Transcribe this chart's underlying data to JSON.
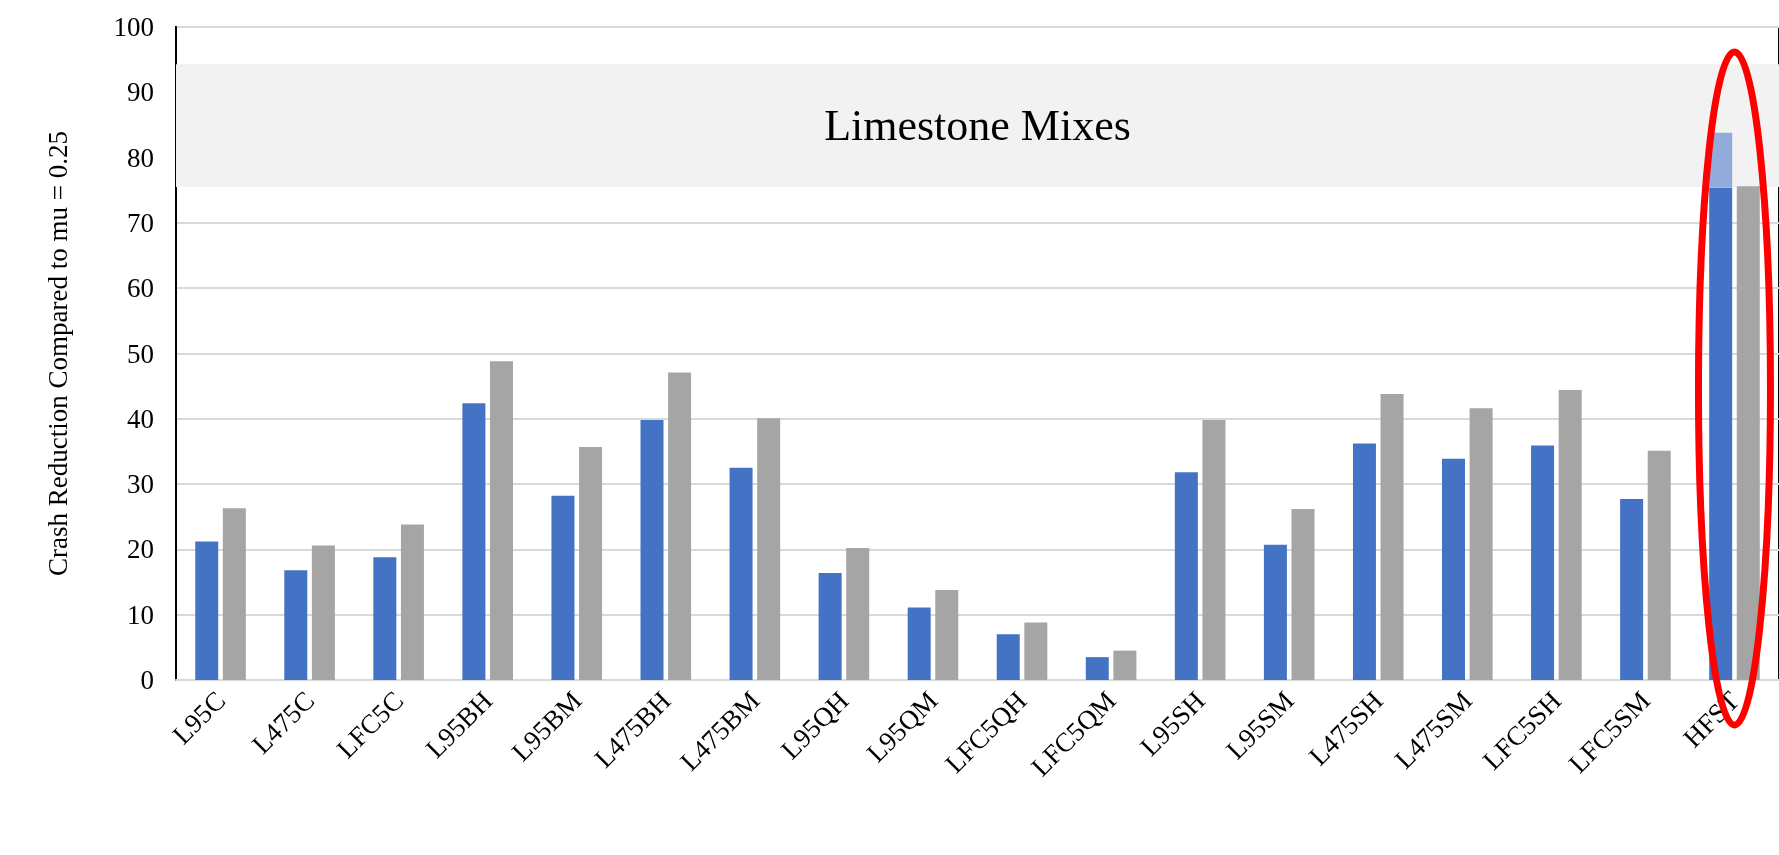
{
  "chart_data": {
    "type": "bar",
    "ylabel": "Crash Reduction Compared to mu = 0.25",
    "categories": [
      "L95C",
      "L475C",
      "LFC5C",
      "L95BH",
      "L95BM",
      "L475BH",
      "L475BM",
      "L95QH",
      "L95QM",
      "LFC5QH",
      "LFC5QM",
      "L95SH",
      "L95SM",
      "L475SH",
      "L475SM",
      "LFC5SH",
      "LFC5SM",
      "HFST"
    ],
    "series": [
      {
        "color": "#4472c4",
        "values": [
          21.2,
          16.8,
          18.8,
          42.4,
          28.2,
          39.8,
          32.5,
          16.4,
          11.1,
          7.0,
          3.5,
          31.8,
          20.7,
          36.2,
          33.9,
          35.9,
          27.7,
          75.4
        ]
      },
      {
        "color": "#a5a5a5",
        "values": [
          26.3,
          20.6,
          23.8,
          48.8,
          35.7,
          47.1,
          40.1,
          20.2,
          13.8,
          8.8,
          4.5,
          39.8,
          26.2,
          43.8,
          41.6,
          44.4,
          35.1,
          75.6
        ]
      },
      {
        "color": "#93abdb",
        "base": [
          null,
          null,
          null,
          null,
          null,
          null,
          null,
          null,
          null,
          null,
          null,
          null,
          null,
          null,
          null,
          null,
          null,
          75.4
        ],
        "values": [
          null,
          null,
          null,
          null,
          null,
          null,
          null,
          null,
          null,
          null,
          null,
          null,
          null,
          null,
          null,
          null,
          null,
          8.4
        ]
      }
    ],
    "ylim": [
      0,
      100
    ],
    "yticks": [
      0,
      10,
      20,
      30,
      40,
      50,
      60,
      70,
      80,
      90,
      100
    ],
    "grid": "y",
    "bands": [
      {
        "axis": "y",
        "from": 75.5,
        "to": 94.3,
        "label": "Limestone Mixes",
        "color": "#f2f2f2"
      }
    ]
  }
}
